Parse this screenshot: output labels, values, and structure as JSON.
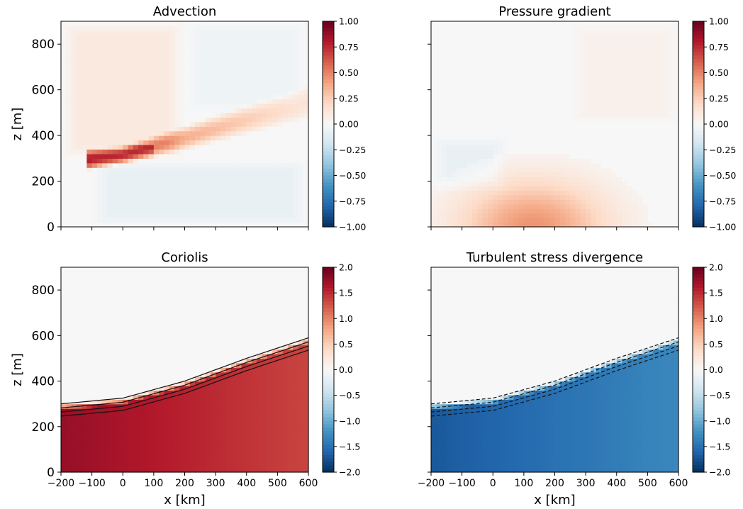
{
  "chart_data": [
    {
      "type": "heatmap",
      "title": "Advection",
      "xlabel": "",
      "ylabel": "z [m]",
      "xlim": [
        -200,
        600
      ],
      "ylim": [
        0,
        900
      ],
      "x_ticks": [
        -200,
        -100,
        0,
        100,
        200,
        300,
        400,
        500,
        600
      ],
      "y_ticks": [
        "0",
        "200",
        "400",
        "600",
        "800"
      ],
      "x_tick_labels_shown": false,
      "colorbar": {
        "colormap": "RdBu_r",
        "range": [
          -1.0,
          1.0
        ],
        "ticks": [
          "1.00",
          "0.75",
          "0.50",
          "0.25",
          "0.00",
          "−0.25",
          "−0.50",
          "−0.75",
          "−1.00"
        ]
      },
      "field_features": [
        {
          "shape": "wedge",
          "sign": "positive",
          "peak": 1.0,
          "x_range": [
            -120,
            600
          ],
          "z_bottom_at_x": [
            [
              -120,
              270
            ],
            [
              0,
              300
            ],
            [
              200,
              360
            ],
            [
              400,
              430
            ],
            [
              600,
              500
            ]
          ],
          "z_top_at_x": [
            [
              -120,
              320
            ],
            [
              0,
              330
            ],
            [
              200,
              420
            ],
            [
              400,
              510
            ],
            [
              600,
              600
            ]
          ],
          "core_x": [
            -80,
            40
          ],
          "core_z": [
            260,
            320
          ]
        },
        {
          "shape": "background-region",
          "sign": "positive",
          "value": 0.1,
          "x_range": [
            -200,
            200
          ],
          "z_range": [
            300,
            900
          ]
        },
        {
          "shape": "background-region",
          "sign": "negative",
          "value": -0.05,
          "x_range": [
            200,
            600
          ],
          "z_range": [
            500,
            900
          ]
        },
        {
          "shape": "background-region",
          "sign": "negative",
          "value": -0.08,
          "x_range": [
            -100,
            600
          ],
          "z_range": [
            0,
            300
          ]
        }
      ]
    },
    {
      "type": "heatmap",
      "title": "Pressure gradient",
      "xlabel": "",
      "ylabel": "",
      "xlim": [
        -200,
        600
      ],
      "ylim": [
        0,
        900
      ],
      "x_tick_labels_shown": false,
      "y_tick_labels_shown": false,
      "colorbar": {
        "colormap": "RdBu_r",
        "range": [
          -1.0,
          1.0
        ],
        "ticks": [
          "1.00",
          "0.75",
          "0.50",
          "0.25",
          "0.00",
          "−0.25",
          "−0.50",
          "−0.75",
          "−1.00"
        ]
      },
      "field_features": [
        {
          "shape": "blob",
          "sign": "positive",
          "peak": 0.45,
          "center": [
            130,
            0
          ],
          "radius_x": 300,
          "radius_z": 260
        },
        {
          "shape": "background-region",
          "sign": "negative",
          "value": -0.08,
          "x_range": [
            -200,
            50
          ],
          "z_range": [
            150,
            400
          ]
        },
        {
          "shape": "background-region",
          "sign": "positive",
          "value": 0.05,
          "x_range": [
            250,
            600
          ],
          "z_range": [
            450,
            900
          ]
        }
      ]
    },
    {
      "type": "heatmap",
      "title": "Coriolis",
      "xlabel": "x [km]",
      "ylabel": "z [m]",
      "xlim": [
        -200,
        600
      ],
      "ylim": [
        0,
        900
      ],
      "x_ticks": [
        "−200",
        "−100",
        "0",
        "100",
        "200",
        "300",
        "400",
        "500",
        "600"
      ],
      "y_ticks": [
        "0",
        "200",
        "400",
        "600",
        "800"
      ],
      "colorbar": {
        "colormap": "RdBu_r",
        "range": [
          -2.0,
          2.0
        ],
        "ticks": [
          "2.0",
          "1.5",
          "1.0",
          "0.5",
          "0.0",
          "−0.5",
          "−1.0",
          "−1.5",
          "−2.0"
        ]
      },
      "field_features": [
        {
          "shape": "layer",
          "sign": "positive",
          "value_bottom": 1.75,
          "value_right": 1.35,
          "top_z_at_x": [
            [
              -200,
              300
            ],
            [
              0,
              325
            ],
            [
              200,
              400
            ],
            [
              400,
              500
            ],
            [
              600,
              590
            ]
          ]
        }
      ]
    },
    {
      "type": "heatmap",
      "title": "Turbulent stress divergence",
      "xlabel": "x [km]",
      "ylabel": "",
      "xlim": [
        -200,
        600
      ],
      "ylim": [
        0,
        900
      ],
      "x_ticks": [
        "−200",
        "−100",
        "0",
        "100",
        "200",
        "300",
        "400",
        "500",
        "600"
      ],
      "y_tick_labels_shown": false,
      "colorbar": {
        "colormap": "RdBu_r",
        "range": [
          -2.0,
          2.0
        ],
        "ticks": [
          "2.0",
          "1.5",
          "1.0",
          "0.5",
          "0.0",
          "−0.5",
          "−1.0",
          "−1.5",
          "−2.0"
        ]
      },
      "field_features": [
        {
          "shape": "layer",
          "sign": "negative",
          "value_bottom": -1.7,
          "value_right": -1.3,
          "top_z_at_x": [
            [
              -200,
              300
            ],
            [
              0,
              325
            ],
            [
              200,
              400
            ],
            [
              400,
              500
            ],
            [
              600,
              590
            ]
          ]
        }
      ]
    }
  ]
}
